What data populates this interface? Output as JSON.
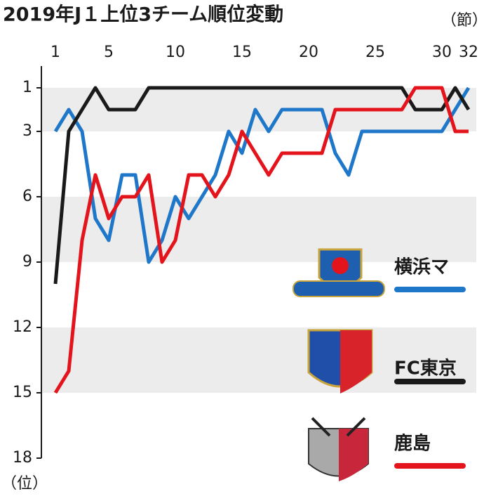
{
  "chart_data": {
    "type": "line",
    "title": "2019年J１上位3チーム順位変動",
    "x_label": "（節）",
    "y_label": "（位）",
    "x": [
      1,
      2,
      3,
      4,
      5,
      6,
      7,
      8,
      9,
      10,
      11,
      12,
      13,
      14,
      15,
      16,
      17,
      18,
      19,
      20,
      21,
      22,
      23,
      24,
      25,
      26,
      27,
      28,
      29,
      30,
      31,
      32
    ],
    "xlim": [
      1,
      32
    ],
    "xticks": [
      1,
      5,
      10,
      15,
      20,
      25,
      30,
      32
    ],
    "ylim": [
      18,
      0
    ],
    "yticks": [
      1,
      3,
      6,
      9,
      12,
      15,
      18
    ],
    "series": [
      {
        "name": "横浜マ",
        "color": "#1f77c9",
        "values": [
          3,
          2,
          3,
          7,
          8,
          5,
          5,
          9,
          8,
          6,
          7,
          6,
          5,
          3,
          4,
          2,
          3,
          2,
          2,
          2,
          2,
          4,
          5,
          3,
          3,
          3,
          3,
          3,
          3,
          3,
          2,
          1
        ]
      },
      {
        "name": "FC東京",
        "color": "#1a1a1a",
        "values": [
          10,
          3,
          2,
          1,
          2,
          2,
          2,
          1,
          1,
          1,
          1,
          1,
          1,
          1,
          1,
          1,
          1,
          1,
          1,
          1,
          1,
          1,
          1,
          1,
          1,
          1,
          1,
          2,
          2,
          2,
          1,
          2
        ]
      },
      {
        "name": "鹿島",
        "color": "#e3141b",
        "values": [
          15,
          14,
          8,
          5,
          7,
          6,
          6,
          5,
          9,
          8,
          5,
          5,
          6,
          5,
          3,
          4,
          5,
          4,
          4,
          4,
          4,
          2,
          2,
          2,
          2,
          2,
          2,
          1,
          1,
          1,
          3,
          3
        ]
      }
    ]
  }
}
